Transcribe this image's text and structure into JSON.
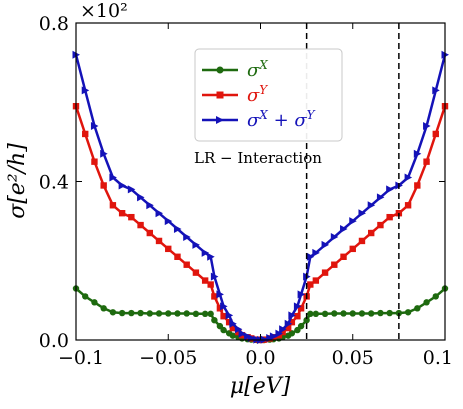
{
  "chart_data": {
    "type": "line",
    "title": "",
    "xlabel": "μ[eV]",
    "ylabel": "σ[e²/h]",
    "y_multiplier": "×10²",
    "xlim": [
      -0.1,
      0.1
    ],
    "ylim": [
      0,
      0.8
    ],
    "xticks": [
      -0.1,
      -0.05,
      0.0,
      0.05,
      0.1
    ],
    "xtick_labels": [
      "−0.1",
      "−0.05",
      "0.0",
      "0.05",
      "0.1"
    ],
    "yticks": [
      0.0,
      0.4,
      0.8
    ],
    "ytick_labels": [
      "0.0",
      "0.4",
      "0.8"
    ],
    "annotation": "LR − Interaction",
    "vlines": [
      0.025,
      0.075
    ],
    "grid": false,
    "legend_position": "top-center",
    "x": [
      -0.1,
      -0.095,
      -0.09,
      -0.085,
      -0.08,
      -0.075,
      -0.07,
      -0.065,
      -0.06,
      -0.055,
      -0.05,
      -0.045,
      -0.04,
      -0.035,
      -0.03,
      -0.027,
      -0.025,
      -0.022,
      -0.02,
      -0.017,
      -0.015,
      -0.012,
      -0.01,
      -0.007,
      -0.005,
      -0.002,
      0.0,
      0.002,
      0.005,
      0.007,
      0.01,
      0.012,
      0.015,
      0.017,
      0.02,
      0.022,
      0.025,
      0.027,
      0.03,
      0.035,
      0.04,
      0.045,
      0.05,
      0.055,
      0.06,
      0.065,
      0.07,
      0.075,
      0.08,
      0.085,
      0.09,
      0.095,
      0.1
    ],
    "series": [
      {
        "name": "σ^X",
        "color": "#1e6a0f",
        "marker": "circle",
        "values": [
          0.13,
          0.11,
          0.095,
          0.08,
          0.07,
          0.068,
          0.068,
          0.068,
          0.067,
          0.067,
          0.067,
          0.067,
          0.067,
          0.066,
          0.066,
          0.066,
          0.05,
          0.035,
          0.025,
          0.017,
          0.011,
          0.007,
          0.004,
          0.002,
          0.001,
          0.0,
          0.0,
          0.0,
          0.001,
          0.002,
          0.004,
          0.007,
          0.011,
          0.017,
          0.025,
          0.035,
          0.05,
          0.066,
          0.066,
          0.066,
          0.067,
          0.067,
          0.067,
          0.067,
          0.067,
          0.068,
          0.068,
          0.068,
          0.07,
          0.08,
          0.095,
          0.11,
          0.13
        ]
      },
      {
        "name": "σ^Y",
        "color": "#e0150d",
        "marker": "square",
        "values": [
          0.59,
          0.52,
          0.45,
          0.39,
          0.34,
          0.32,
          0.31,
          0.29,
          0.27,
          0.25,
          0.23,
          0.21,
          0.19,
          0.17,
          0.15,
          0.14,
          0.11,
          0.08,
          0.06,
          0.045,
          0.03,
          0.02,
          0.012,
          0.007,
          0.004,
          0.001,
          0.0,
          0.001,
          0.004,
          0.007,
          0.012,
          0.02,
          0.03,
          0.045,
          0.06,
          0.08,
          0.11,
          0.14,
          0.15,
          0.17,
          0.19,
          0.21,
          0.23,
          0.25,
          0.27,
          0.29,
          0.31,
          0.32,
          0.34,
          0.39,
          0.45,
          0.52,
          0.59
        ]
      },
      {
        "name": "σ^X + σ^Y",
        "color": "#1412b8",
        "marker": "triangle",
        "values": [
          0.72,
          0.63,
          0.54,
          0.47,
          0.41,
          0.39,
          0.38,
          0.36,
          0.34,
          0.32,
          0.3,
          0.28,
          0.26,
          0.24,
          0.22,
          0.21,
          0.16,
          0.115,
          0.085,
          0.062,
          0.041,
          0.027,
          0.016,
          0.009,
          0.005,
          0.001,
          0.0,
          0.001,
          0.005,
          0.009,
          0.016,
          0.027,
          0.041,
          0.062,
          0.085,
          0.115,
          0.16,
          0.21,
          0.22,
          0.24,
          0.26,
          0.28,
          0.3,
          0.32,
          0.34,
          0.36,
          0.38,
          0.39,
          0.41,
          0.47,
          0.54,
          0.63,
          0.72
        ]
      }
    ]
  }
}
